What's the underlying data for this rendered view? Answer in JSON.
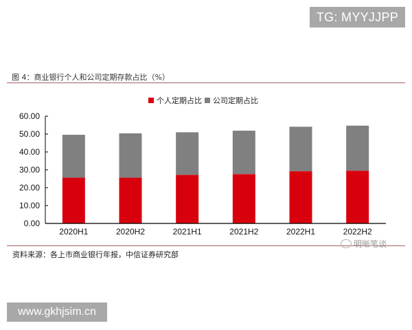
{
  "watermarks": {
    "top": "TG: MYYJJPP",
    "bottom": "www.gkhjsim.cn",
    "wechat": "明晰笔谈"
  },
  "figure": {
    "title": "图 4：商业银行个人和公司定期存款占比（%）",
    "source": "资料来源：各上市商业银行年报，中信证券研究部"
  },
  "colors": {
    "personal": "#d9000d",
    "corporate": "#808080",
    "rule": "#a86060"
  },
  "chart_data": {
    "type": "bar",
    "stacked": true,
    "title": "商业银行个人和公司定期存款占比（%）",
    "xlabel": "",
    "ylabel": "",
    "categories": [
      "2020H1",
      "2020H2",
      "2021H1",
      "2021H2",
      "2022H1",
      "2022H2"
    ],
    "series": [
      {
        "name": "个人定期占比",
        "color": "#d9000d",
        "values": [
          25.6,
          25.6,
          27.2,
          27.6,
          29.2,
          29.5
        ]
      },
      {
        "name": "公司定期占比",
        "color": "#808080",
        "values": [
          24.0,
          24.8,
          23.8,
          24.3,
          24.9,
          25.2
        ]
      }
    ],
    "totals": [
      49.6,
      50.4,
      51.0,
      51.9,
      54.1,
      54.7
    ],
    "yticks": [
      "0.00",
      "10.00",
      "20.00",
      "30.00",
      "40.00",
      "50.00",
      "60.00"
    ],
    "ylim": [
      0,
      60
    ],
    "grid": false,
    "legend_position": "top"
  }
}
